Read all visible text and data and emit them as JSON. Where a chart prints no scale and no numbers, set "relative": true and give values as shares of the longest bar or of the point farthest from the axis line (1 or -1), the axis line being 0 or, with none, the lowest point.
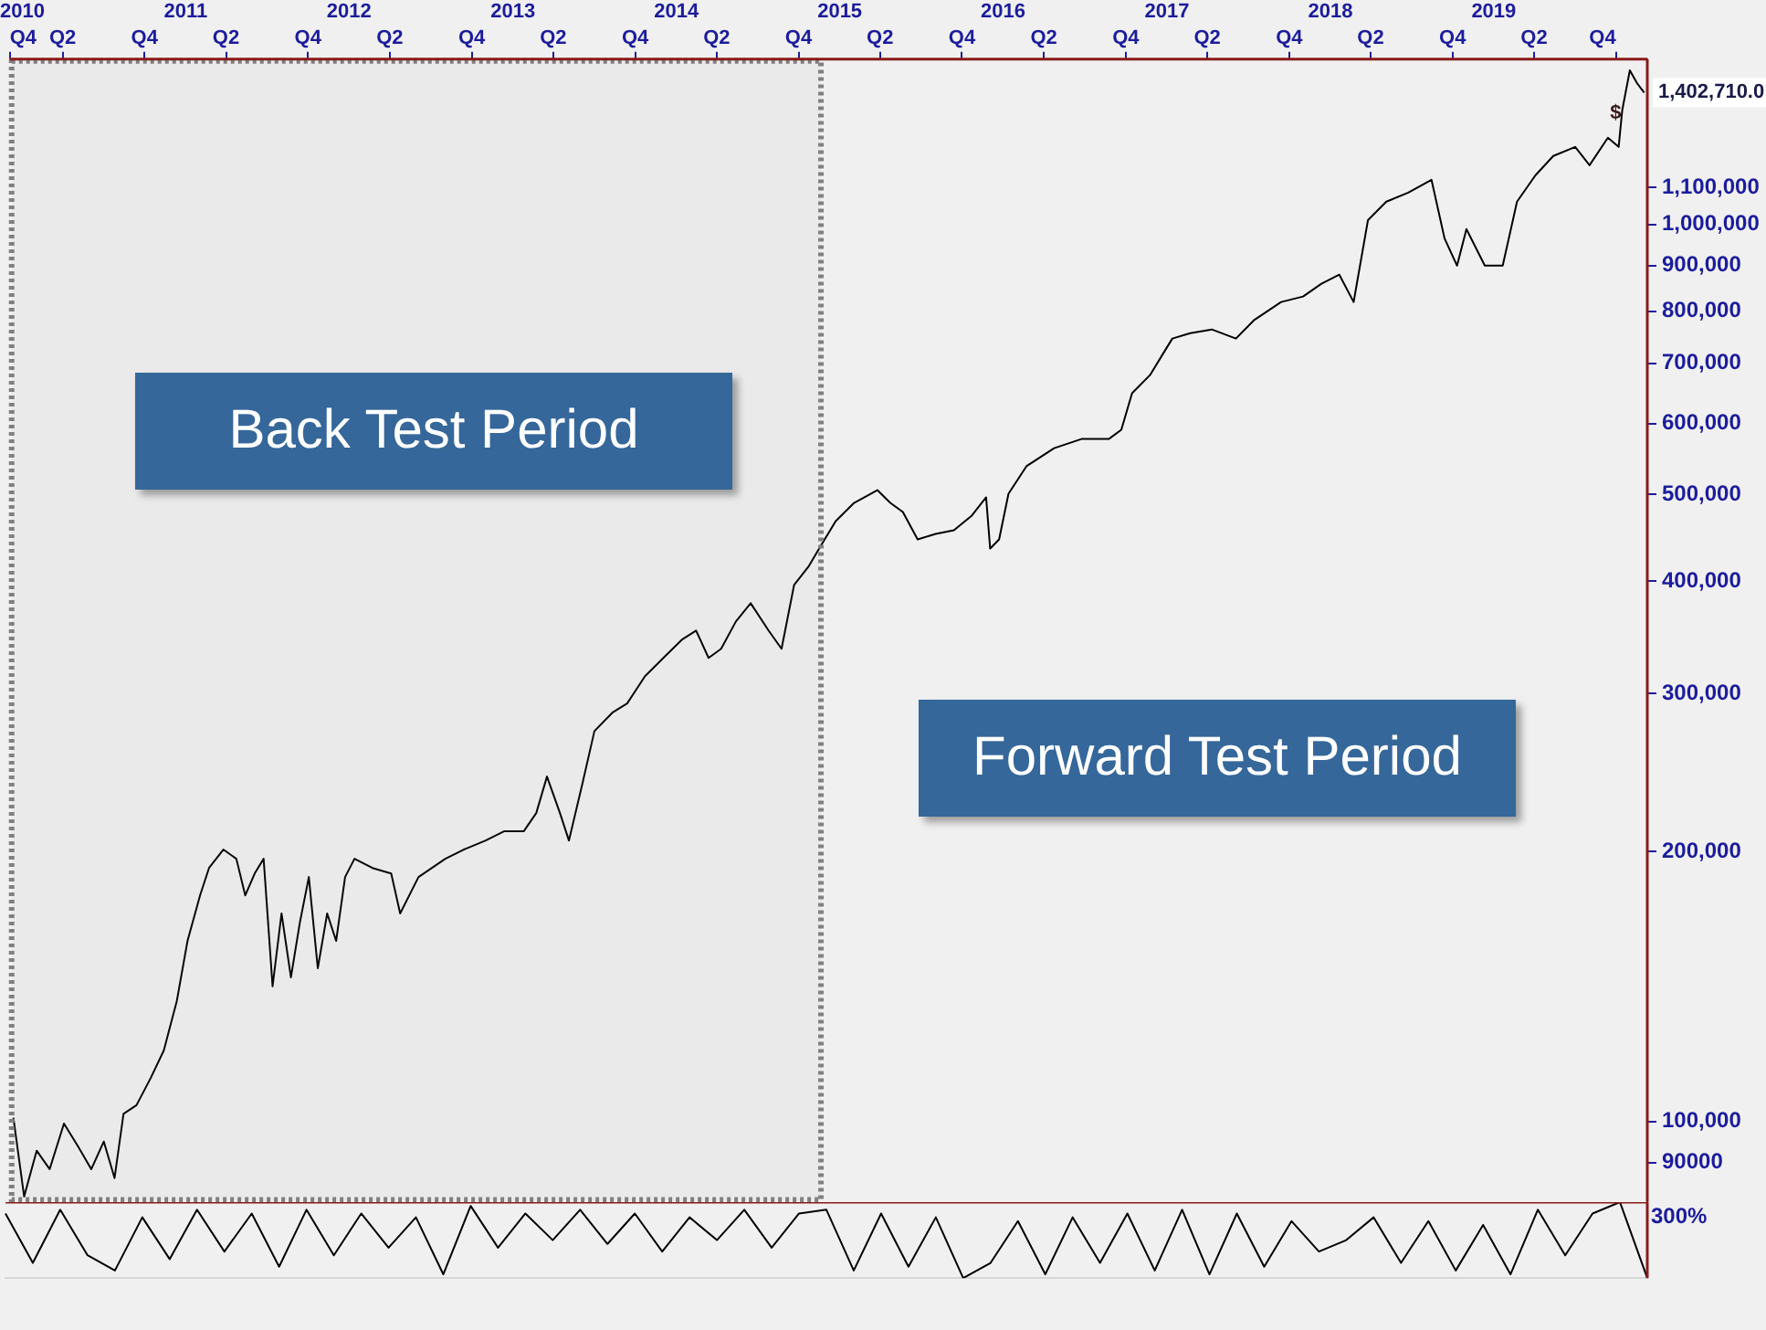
{
  "chart_data": [
    {
      "type": "line",
      "log": true,
      "annotations": [
        "Back Test Period",
        "Forward Test Period",
        {
          "text": "$",
          "x": "2019-10-25",
          "y": 1330000
        },
        {
          "text": "1,402,710.0",
          "x": "2019-12-03",
          "y": 1402710
        }
      ],
      "xlim": [
        "2009-12-04",
        "2019-12-10"
      ],
      "xticks": [
        {
          "value": "2009-12-04",
          "label": "Q4"
        },
        {
          "value": "2010-04-01",
          "label": "Q2"
        },
        {
          "value": "2010-10-01",
          "label": "Q4"
        },
        {
          "value": "2011-04-01",
          "label": "Q2"
        },
        {
          "value": "2011-10-01",
          "label": "Q4"
        },
        {
          "value": "2012-04-01",
          "label": "Q2"
        },
        {
          "value": "2012-10-01",
          "label": "Q4"
        },
        {
          "value": "2013-04-01",
          "label": "Q2"
        },
        {
          "value": "2013-10-01",
          "label": "Q4"
        },
        {
          "value": "2014-04-01",
          "label": "Q2"
        },
        {
          "value": "2014-10-01",
          "label": "Q4"
        },
        {
          "value": "2015-04-01",
          "label": "Q2"
        },
        {
          "value": "2015-10-01",
          "label": "Q4"
        },
        {
          "value": "2016-04-01",
          "label": "Q2"
        },
        {
          "value": "2016-10-01",
          "label": "Q4"
        },
        {
          "value": "2017-04-01",
          "label": "Q2"
        },
        {
          "value": "2017-10-01",
          "label": "Q4"
        },
        {
          "value": "2018-04-01",
          "label": "Q2"
        },
        {
          "value": "2018-10-01",
          "label": "Q4"
        },
        {
          "value": "2019-04-01",
          "label": "Q2"
        },
        {
          "value": "2019-10-01",
          "label": "Q4"
        }
      ],
      "x2lim": [
        "2009-12-04",
        "2019-12-10"
      ],
      "x2ticks": [
        {
          "value": "2010-01-01",
          "label": "2010"
        },
        {
          "value": "2011-01-01",
          "label": "2011"
        },
        {
          "value": "2012-01-01",
          "label": "2012"
        },
        {
          "value": "2013-01-01",
          "label": "2013"
        },
        {
          "value": "2014-01-01",
          "label": "2014"
        },
        {
          "value": "2015-01-01",
          "label": "2015"
        },
        {
          "value": "2016-01-01",
          "label": "2016"
        },
        {
          "value": "2017-01-01",
          "label": "2017"
        },
        {
          "value": "2018-01-01",
          "label": "2018"
        },
        {
          "value": "2019-01-01",
          "label": "2019"
        }
      ],
      "ylim": [
        81400,
        1528000
      ],
      "yticks": [
        {
          "value": 90000,
          "label": "90000"
        },
        {
          "value": 100000,
          "label": "100,000"
        },
        {
          "value": 200000,
          "label": "200,000"
        },
        {
          "value": 300000,
          "label": "300,000"
        },
        {
          "value": 400000,
          "label": "400,000"
        },
        {
          "value": 500000,
          "label": "500,000"
        },
        {
          "value": 600000,
          "label": "600,000"
        },
        {
          "value": 700000,
          "label": "700,000"
        },
        {
          "value": 800000,
          "label": "800,000"
        },
        {
          "value": 900000,
          "label": "900,000"
        },
        {
          "value": 1000000,
          "label": "1,000,000"
        },
        {
          "value": 1100000,
          "label": "1,100,000"
        }
      ],
      "bands": [
        {
          "axis": "x",
          "from": "2009-12-04",
          "to": "2014-11-20",
          "color": "#808080"
        }
      ],
      "x": [
        "2009-12-12",
        "2010-01-05",
        "2010-02-02",
        "2010-03-03",
        "2010-04-04",
        "2010-05-06",
        "2010-06-04",
        "2010-07-02",
        "2010-07-26",
        "2010-08-15",
        "2010-09-13",
        "2010-10-15",
        "2010-11-13",
        "2010-12-12",
        "2011-01-05",
        "2011-02-02",
        "2011-02-22",
        "2011-03-26",
        "2011-04-24",
        "2011-05-14",
        "2011-06-04",
        "2011-06-24",
        "2011-07-14",
        "2011-08-03",
        "2011-08-24",
        "2011-09-13",
        "2011-10-03",
        "2011-10-23",
        "2011-11-13",
        "2011-12-03",
        "2011-12-23",
        "2012-01-13",
        "2012-02-22",
        "2012-04-04",
        "2012-04-24",
        "2012-06-04",
        "2012-08-03",
        "2012-09-13",
        "2012-11-01",
        "2012-12-12",
        "2013-01-25",
        "2013-02-22",
        "2013-03-18",
        "2013-04-16",
        "2013-05-06",
        "2013-06-04",
        "2013-07-02",
        "2013-08-11",
        "2013-09-13",
        "2013-10-23",
        "2013-12-03",
        "2014-01-13",
        "2014-02-14",
        "2014-03-14",
        "2014-04-11",
        "2014-05-14",
        "2014-06-16",
        "2014-07-26",
        "2014-08-24",
        "2014-09-21",
        "2014-10-23",
        "2014-11-16",
        "2014-12-23",
        "2015-02-02",
        "2015-03-26",
        "2015-04-24",
        "2015-05-22",
        "2015-06-24",
        "2015-08-03",
        "2015-09-13",
        "2015-10-23",
        "2015-11-24",
        "2015-12-03",
        "2015-12-23",
        "2016-01-13",
        "2016-02-22",
        "2016-04-24",
        "2016-06-24",
        "2016-08-24",
        "2016-09-21",
        "2016-10-15",
        "2016-11-24",
        "2017-01-13",
        "2017-02-22",
        "2017-04-11",
        "2017-06-04",
        "2017-07-14",
        "2017-09-13",
        "2017-11-01",
        "2017-12-12",
        "2018-01-21",
        "2018-02-22",
        "2018-03-26",
        "2018-05-06",
        "2018-06-24",
        "2018-08-15",
        "2018-09-13",
        "2018-10-11",
        "2018-11-01",
        "2018-12-12",
        "2019-01-21",
        "2019-02-22",
        "2019-04-04",
        "2019-05-14",
        "2019-07-02",
        "2019-08-03",
        "2019-09-13",
        "2019-10-07",
        "2019-10-15",
        "2019-11-01",
        "2019-11-17",
        "2019-12-03"
      ],
      "series": [
        {
          "color": "#000000",
          "values": [
            101000,
            82500,
            92800,
            88500,
            99500,
            93700,
            88500,
            95000,
            86500,
            102000,
            104300,
            111900,
            120000,
            136200,
            159000,
            178700,
            191700,
            201000,
            196300,
            178700,
            189000,
            196300,
            141500,
            170600,
            144800,
            166700,
            187300,
            148200,
            170600,
            159000,
            187300,
            196300,
            191700,
            189000,
            170600,
            187300,
            196300,
            201000,
            205700,
            210600,
            210600,
            220700,
            242400,
            220700,
            205700,
            236700,
            272400,
            285600,
            292400,
            313600,
            328700,
            344300,
            352600,
            328700,
            336500,
            360900,
            378200,
            352600,
            336500,
            396300,
            415300,
            435200,
            466900,
            489300,
            505600,
            489300,
            478000,
            445600,
            451800,
            456000,
            473600,
            496300,
            435200,
            445600,
            501000,
            537500,
            563100,
            576500,
            576500,
            590200,
            648300,
            679200,
            746000,
            756500,
            763600,
            746000,
            781700,
            819400,
            831000,
            858600,
            878900,
            819400,
            1011000,
            1060000,
            1085000,
            1121000,
            965000,
            899500,
            987900,
            899500,
            899500,
            1060000,
            1134000,
            1192000,
            1220000,
            1164000,
            1249000,
            1220000,
            1340000,
            1485000,
            1437000,
            1402710
          ]
        }
      ]
    },
    {
      "type": "line",
      "relative": true,
      "annotations": [
        "300%"
      ],
      "categories": [
        null,
        null,
        null,
        null,
        null,
        null,
        null,
        null,
        null,
        null,
        null,
        null,
        null,
        null,
        null,
        null,
        null,
        null,
        null,
        null,
        null,
        null,
        null,
        null,
        null,
        null,
        null,
        null,
        null,
        null,
        null,
        null,
        null,
        null,
        null,
        null,
        null,
        null,
        null,
        null,
        null,
        null,
        null,
        null,
        null,
        null,
        null,
        null,
        null,
        null,
        null,
        null,
        null,
        null,
        null,
        null,
        null,
        null,
        null,
        null,
        null
      ],
      "series": [
        {
          "color": "#000000",
          "values": [
            0.85,
            0.2,
            0.9,
            0.3,
            0.1,
            0.8,
            0.25,
            0.9,
            0.35,
            0.85,
            0.15,
            0.9,
            0.3,
            0.85,
            0.4,
            0.8,
            0.05,
            0.95,
            0.4,
            0.85,
            0.5,
            0.9,
            0.45,
            0.85,
            0.35,
            0.8,
            0.5,
            0.9,
            0.4,
            0.85,
            0.9,
            0.1,
            0.85,
            0.15,
            0.8,
            0.0,
            0.2,
            0.75,
            0.05,
            0.8,
            0.2,
            0.85,
            0.1,
            0.9,
            0.05,
            0.85,
            0.15,
            0.75,
            0.35,
            0.5,
            0.8,
            0.2,
            0.75,
            0.1,
            0.7,
            0.05,
            0.9,
            0.3,
            0.85,
            1,
            0.0
          ]
        }
      ]
    }
  ]
}
